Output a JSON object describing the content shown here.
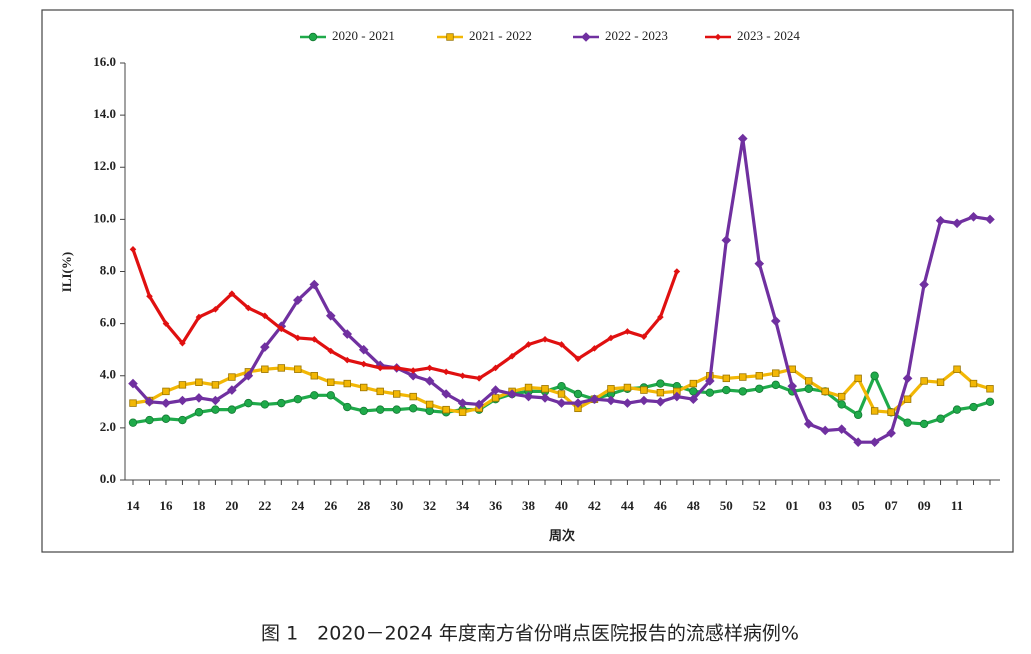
{
  "chart_data": {
    "type": "line",
    "y_label": "ILI(%)",
    "x_label": "周次",
    "caption": "图 1　2020－2024 年度南方省份哨点医院报告的流感样病例%",
    "categories": [
      "14",
      null,
      "16",
      null,
      "18",
      null,
      "20",
      null,
      "22",
      null,
      "24",
      null,
      "26",
      null,
      "28",
      null,
      "30",
      null,
      "32",
      null,
      "34",
      null,
      "36",
      null,
      "38",
      null,
      "40",
      null,
      "42",
      null,
      "44",
      null,
      "46",
      null,
      "48",
      null,
      "50",
      null,
      "52",
      null,
      "01",
      null,
      "03",
      null,
      "05",
      null,
      "07",
      null,
      "09",
      null,
      "11",
      null,
      null
    ],
    "ylim": [
      0,
      16
    ],
    "yticks": [
      {
        "value": 0,
        "label": "0.0"
      },
      {
        "value": 2,
        "label": "2.0"
      },
      {
        "value": 4,
        "label": "4.0"
      },
      {
        "value": 6,
        "label": "6.0"
      },
      {
        "value": 8,
        "label": "8.0"
      },
      {
        "value": 10,
        "label": "10.0"
      },
      {
        "value": 12,
        "label": "12.0"
      },
      {
        "value": 14,
        "label": "14.0"
      },
      {
        "value": 16,
        "label": "16.0"
      }
    ],
    "legend": "top",
    "series": [
      {
        "name": "2020 - 2021",
        "color": "#1faa4a",
        "marker": "circle",
        "values": [
          2.2,
          2.3,
          2.35,
          2.3,
          2.6,
          2.7,
          2.7,
          2.95,
          2.9,
          2.95,
          3.1,
          3.25,
          3.25,
          2.8,
          2.65,
          2.7,
          2.7,
          2.75,
          2.65,
          2.6,
          2.7,
          2.7,
          3.1,
          3.3,
          3.4,
          3.4,
          3.6,
          3.3,
          3.1,
          3.3,
          3.5,
          3.55,
          3.7,
          3.6,
          3.4,
          3.35,
          3.45,
          3.4,
          3.5,
          3.65,
          3.4,
          3.5,
          3.4,
          2.9,
          2.5,
          4.0,
          2.6,
          2.2,
          2.15,
          2.35,
          2.7,
          2.8,
          3.0
        ]
      },
      {
        "name": "2021 - 2022",
        "color": "#f2b705",
        "marker": "square",
        "values": [
          2.95,
          3.05,
          3.4,
          3.65,
          3.75,
          3.65,
          3.95,
          4.15,
          4.25,
          4.3,
          4.25,
          4.0,
          3.75,
          3.7,
          3.55,
          3.4,
          3.3,
          3.2,
          2.9,
          2.7,
          2.6,
          2.75,
          3.15,
          3.4,
          3.55,
          3.5,
          3.3,
          2.75,
          3.1,
          3.5,
          3.55,
          3.45,
          3.35,
          3.4,
          3.7,
          4.0,
          3.9,
          3.95,
          4.0,
          4.1,
          4.25,
          3.8,
          3.4,
          3.2,
          3.9,
          2.65,
          2.6,
          3.1,
          3.8,
          3.75,
          4.25,
          3.7,
          3.5
        ]
      },
      {
        "name": "2022 - 2023",
        "color": "#7030a0",
        "marker": "diamond",
        "values": [
          3.7,
          3.0,
          2.95,
          3.05,
          3.15,
          3.05,
          3.45,
          4.0,
          5.1,
          5.9,
          6.9,
          7.5,
          6.3,
          5.6,
          5.0,
          4.4,
          4.3,
          4.0,
          3.8,
          3.3,
          2.95,
          2.9,
          3.45,
          3.3,
          3.2,
          3.15,
          2.95,
          2.95,
          3.1,
          3.05,
          2.95,
          3.05,
          3.0,
          3.2,
          3.1,
          3.8,
          9.2,
          13.1,
          8.3,
          6.1,
          3.6,
          2.15,
          1.9,
          1.95,
          1.45,
          1.45,
          1.8,
          3.9,
          7.5,
          9.95,
          9.85,
          10.1,
          10.0
        ]
      },
      {
        "name": "2023 - 2024",
        "color": "#e01010",
        "marker": "smalldiamond",
        "values": [
          8.85,
          7.05,
          6.0,
          5.25,
          6.25,
          6.55,
          7.15,
          6.6,
          6.3,
          5.8,
          5.45,
          5.4,
          4.95,
          4.6,
          4.45,
          4.3,
          4.3,
          4.2,
          4.3,
          4.15,
          4.0,
          3.9,
          4.3,
          4.75,
          5.2,
          5.4,
          5.2,
          4.65,
          5.05,
          5.45,
          5.7,
          5.5,
          6.25,
          8.0,
          null,
          null,
          null,
          null,
          null,
          null,
          null,
          null,
          null,
          null,
          null,
          null,
          null,
          null,
          null,
          null,
          null,
          null,
          null
        ]
      }
    ]
  }
}
